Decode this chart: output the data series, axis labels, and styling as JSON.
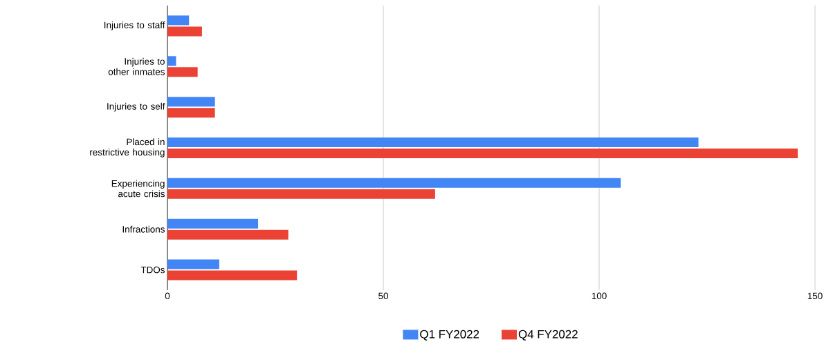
{
  "chart_data": {
    "type": "bar",
    "orientation": "horizontal",
    "categories": [
      "Injuries to staff",
      "Injuries to other inmates",
      "Injuries to self",
      "Placed in restrictive housing",
      "Experiencing acute crisis",
      "Infractions",
      "TDOs"
    ],
    "series": [
      {
        "name": "Q1 FY2022",
        "color": "#4285f4",
        "values": [
          5,
          2,
          11,
          123,
          105,
          21,
          12
        ]
      },
      {
        "name": "Q4 FY2022",
        "color": "#ea4335",
        "values": [
          8,
          7,
          11,
          146,
          62,
          28,
          30
        ]
      }
    ],
    "xlim": [
      0,
      150
    ],
    "xticks": [
      0,
      50,
      100,
      150
    ],
    "grid": "x",
    "legend": "bottom"
  }
}
